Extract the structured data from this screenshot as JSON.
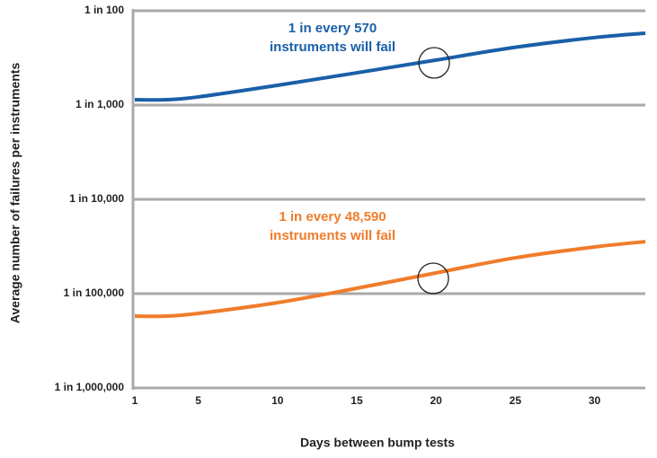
{
  "chart_data": {
    "type": "line",
    "x_label": "Days between bump tests",
    "y_label": "Average number of failures per instruments",
    "log_y": true,
    "grid": true,
    "x": [
      1,
      3,
      5,
      10,
      15,
      20,
      25,
      30,
      33.2
    ],
    "series": [
      {
        "name": "1 in every 570\ninstruments will fail",
        "color": "#1a5fa8",
        "values": [
          0.00114,
          0.00114,
          0.00122,
          0.00162,
          0.0022,
          0.003,
          0.0041,
          0.0052,
          0.00578
        ]
      },
      {
        "name": "1 in every 48,590\ninstruments will fail",
        "color": "#f07c2a",
        "values": [
          5.78e-06,
          5.78e-06,
          6.17e-06,
          8.03e-06,
          1.14e-05,
          1.66e-05,
          2.4e-05,
          3.13e-05,
          3.56e-05
        ]
      }
    ],
    "xlim": [
      1,
      33.2
    ],
    "xticks": [
      1,
      5,
      10,
      15,
      20,
      25,
      30
    ],
    "ylim": [
      1e-06,
      0.01
    ],
    "yticks": [
      {
        "value": 0.01,
        "label": "1 in 100"
      },
      {
        "value": 0.001,
        "label": "1 in 1,000"
      },
      {
        "value": 0.0001,
        "label": "1 in 10,000"
      },
      {
        "value": 1e-05,
        "label": "1 in 100,000"
      },
      {
        "value": 1e-06,
        "label": "1 in 1,000,000"
      }
    ]
  }
}
